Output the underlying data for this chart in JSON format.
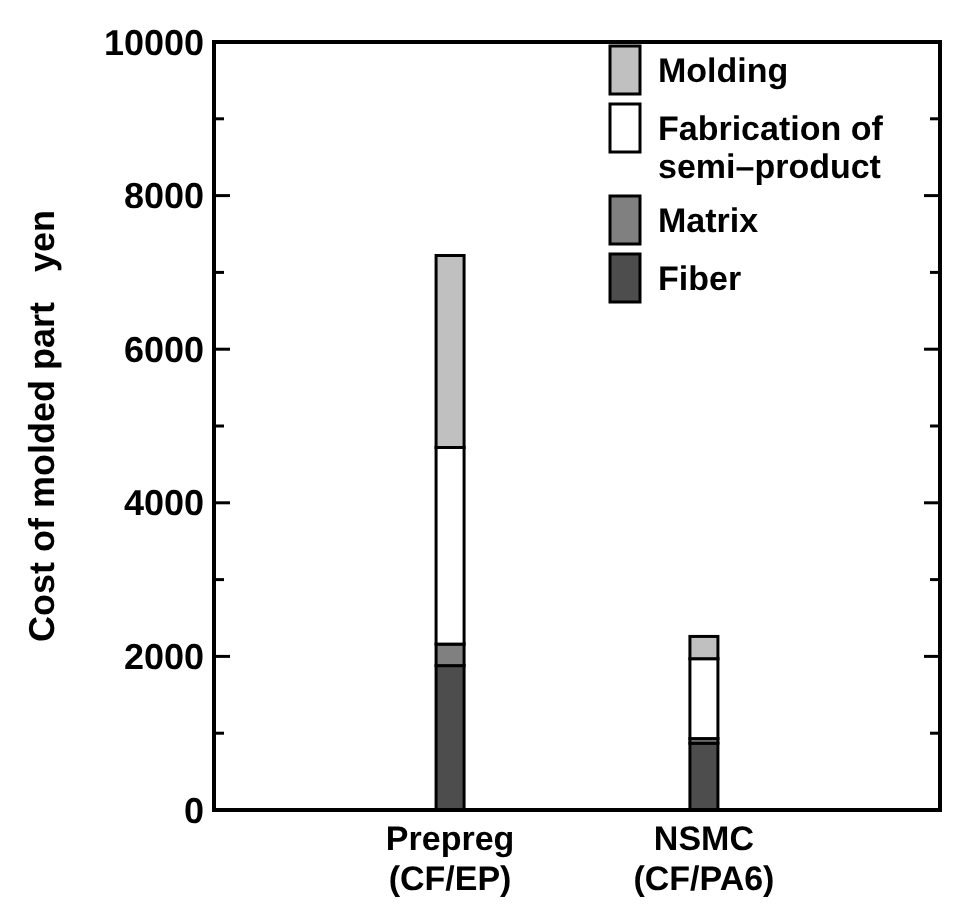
{
  "chart_data": {
    "type": "bar",
    "stacked": true,
    "ylabel": "Cost of molded part   yen",
    "categories": [
      "Prepreg\n(CF/EP)",
      "NSMC\n(CF/PA6)"
    ],
    "series": [
      {
        "name": "Fiber",
        "color": "#4d4d4d",
        "values": [
          1880,
          870
        ]
      },
      {
        "name": "Matrix",
        "color": "#808080",
        "values": [
          280,
          60
        ]
      },
      {
        "name": "Fabrication of\nsemi–product",
        "color": "#ffffff",
        "values": [
          2560,
          1040
        ]
      },
      {
        "name": "Molding",
        "color": "#c0c0c0",
        "values": [
          2500,
          290
        ]
      }
    ],
    "ylim": [
      0,
      10000
    ],
    "yticks": [
      0,
      {
        "value": 1000,
        "label": null
      },
      2000,
      {
        "value": 3000,
        "label": null
      },
      4000,
      {
        "value": 5000,
        "label": null
      },
      6000,
      {
        "value": 7000,
        "label": null
      },
      8000,
      {
        "value": 9000,
        "label": null
      },
      10000
    ],
    "grid": false,
    "legend": "top right"
  }
}
